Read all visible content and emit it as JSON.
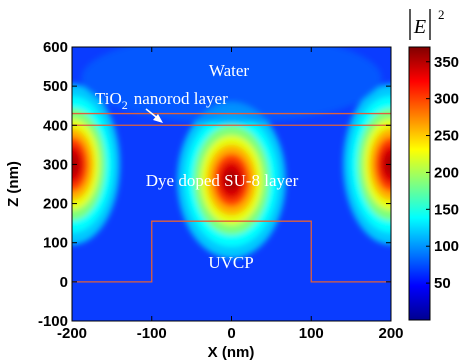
{
  "chart_data": {
    "type": "heatmap",
    "title": "",
    "xlabel": "X (nm)",
    "ylabel": "Z (nm)",
    "xlim": [
      -200,
      200
    ],
    "ylim": [
      -100,
      600
    ],
    "xticks": [
      "-200",
      "-100",
      "0",
      "100",
      "200"
    ],
    "yticks": [
      "-100",
      "0",
      "100",
      "200",
      "300",
      "400",
      "500",
      "600"
    ],
    "colorbar": {
      "title": "|E|",
      "title_superscript": "2",
      "range": [
        0,
        370
      ],
      "ticks": [
        "50",
        "100",
        "150",
        "200",
        "250",
        "300",
        "350"
      ]
    },
    "colormap": "jet",
    "annotations": {
      "water": "Water",
      "tio2_prefix": "TiO",
      "tio2_sub": "2",
      "tio2_suffix": "nanorod layer",
      "su8": "Dye doped SU-8 layer",
      "uvcp": "UVCP"
    },
    "structure_outline": {
      "color": "#e0603a",
      "tio2_layer_z": [
        400,
        430
      ],
      "uvcp_ridge": {
        "x": [
          -100,
          100
        ],
        "z": [
          0,
          155
        ]
      }
    },
    "hotspots": [
      {
        "x": -200,
        "z": 300,
        "value": 370
      },
      {
        "x": 0,
        "z": 260,
        "value": 370
      },
      {
        "x": 200,
        "z": 300,
        "value": 370
      }
    ]
  }
}
